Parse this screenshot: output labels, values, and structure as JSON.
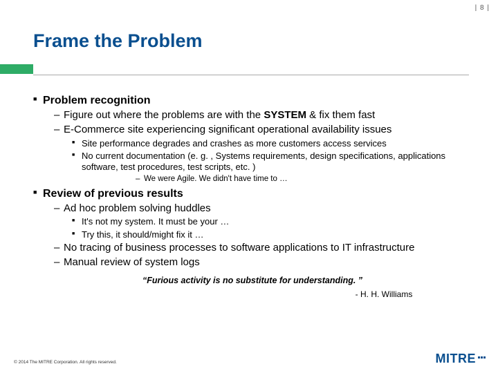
{
  "page_number_text": "| 8 |",
  "title": "Frame the Problem",
  "accent_color": "#2eac66",
  "title_color": "#0a4f8f",
  "sections": {
    "s1": "Problem recognition",
    "s1_a_pre": "Figure out where the problems are with the ",
    "s1_a_bold": "SYSTEM",
    "s1_a_post": " & fix them fast",
    "s1_b": "E-Commerce site experiencing significant operational availability issues",
    "s1_b_i": "Site performance degrades and crashes as more customers access services",
    "s1_b_ii": "No current documentation (e. g. , Systems requirements, design specifications, applications software, test procedures, test scripts, etc. )",
    "s1_b_ii_1": "We were Agile.  We didn't have time to …",
    "s2": "Review of previous results",
    "s2_a": "Ad hoc problem solving huddles",
    "s2_a_i": "It's not my system.  It must be your …",
    "s2_a_ii": "Try this, it should/might fix it …",
    "s2_b": "No tracing of business processes to software applications to IT infrastructure",
    "s2_c": "Manual review of system logs"
  },
  "quote": "“Furious activity is no substitute for understanding. ”",
  "quote_attr": "- H. H. Williams",
  "copyright": "© 2014 The MITRE Corporation. All rights reserved.",
  "logo_text": "MITRE"
}
